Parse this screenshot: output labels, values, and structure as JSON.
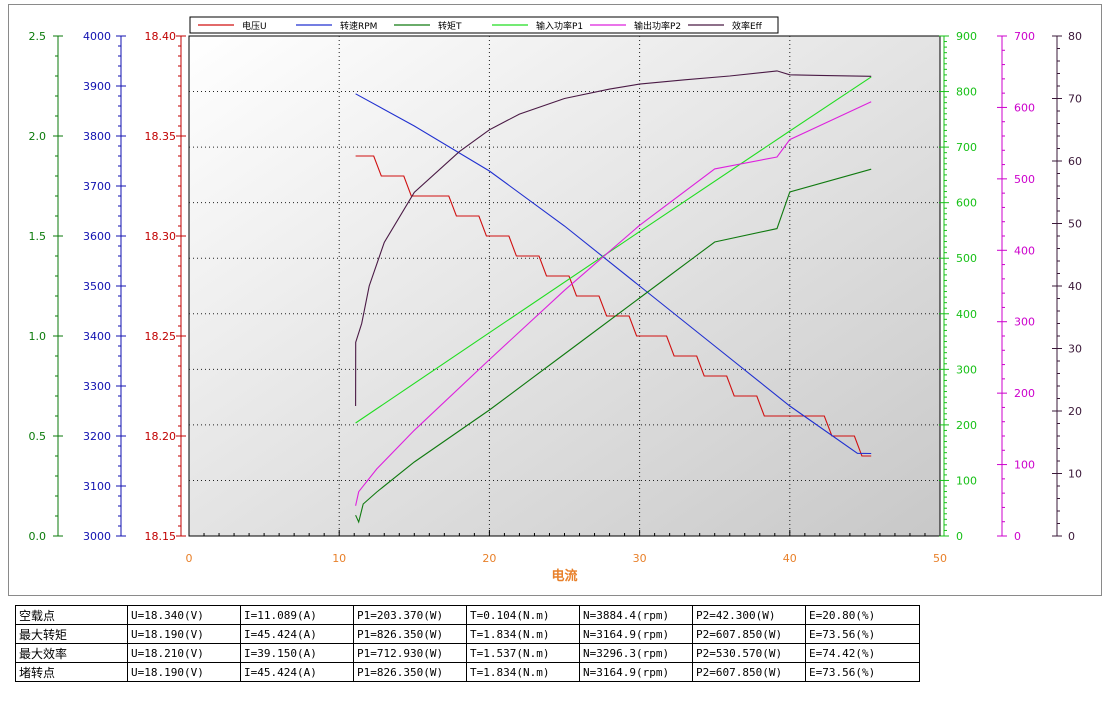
{
  "chart_data": {
    "type": "line",
    "xlabel": "电流",
    "xlim": [
      0,
      50
    ],
    "xticks": [
      0,
      10,
      20,
      30,
      40,
      50
    ],
    "grid": true,
    "legend_placement": "top",
    "axes": {
      "eff_left": {
        "color": "#0a7a0a",
        "range": [
          0,
          2.5
        ],
        "ticks": [
          "0.0",
          "0.5",
          "1.0",
          "1.5",
          "2.0",
          "2.5"
        ]
      },
      "rpm": {
        "color": "#1010b0",
        "range": [
          3000,
          4000
        ],
        "ticks": [
          "3000",
          "3100",
          "3200",
          "3300",
          "3400",
          "3500",
          "3600",
          "3700",
          "3800",
          "3900",
          "4000"
        ]
      },
      "voltage": {
        "color": "#c00000",
        "range": [
          18.15,
          18.4
        ],
        "ticks": [
          "18.15",
          "18.20",
          "18.25",
          "18.30",
          "18.35",
          "18.40"
        ]
      },
      "p1": {
        "color": "#16c016",
        "range": [
          0,
          900
        ],
        "ticks": [
          "0",
          "100",
          "200",
          "300",
          "400",
          "500",
          "600",
          "700",
          "800",
          "900"
        ]
      },
      "p2": {
        "color": "#cc00cc",
        "range": [
          0,
          700
        ],
        "ticks": [
          "0",
          "100",
          "200",
          "300",
          "400",
          "500",
          "600",
          "700"
        ]
      },
      "eff": {
        "color": "#3a1838",
        "range": [
          0,
          80
        ],
        "ticks": [
          "0",
          "10",
          "20",
          "30",
          "40",
          "50",
          "60",
          "70",
          "80"
        ]
      }
    },
    "series": [
      {
        "name": "电压U",
        "color": "#d01010",
        "axis": "voltage",
        "step": true,
        "points": [
          [
            11.09,
            18.34
          ],
          [
            12.3,
            18.34
          ],
          [
            12.8,
            18.33
          ],
          [
            14.3,
            18.33
          ],
          [
            14.8,
            18.32
          ],
          [
            17.3,
            18.32
          ],
          [
            17.8,
            18.31
          ],
          [
            19.3,
            18.31
          ],
          [
            19.8,
            18.3
          ],
          [
            21.3,
            18.3
          ],
          [
            21.8,
            18.29
          ],
          [
            23.3,
            18.29
          ],
          [
            23.8,
            18.28
          ],
          [
            25.3,
            18.28
          ],
          [
            25.8,
            18.27
          ],
          [
            27.3,
            18.27
          ],
          [
            27.8,
            18.26
          ],
          [
            29.3,
            18.26
          ],
          [
            29.8,
            18.25
          ],
          [
            31.8,
            18.25
          ],
          [
            32.3,
            18.24
          ],
          [
            33.8,
            18.24
          ],
          [
            34.3,
            18.23
          ],
          [
            35.8,
            18.23
          ],
          [
            36.3,
            18.22
          ],
          [
            37.8,
            18.22
          ],
          [
            38.3,
            18.21
          ],
          [
            42.3,
            18.21
          ],
          [
            42.8,
            18.2
          ],
          [
            44.3,
            18.2
          ],
          [
            44.8,
            18.19
          ],
          [
            45.42,
            18.19
          ]
        ]
      },
      {
        "name": "转速RPM",
        "color": "#2030d0",
        "axis": "rpm",
        "points": [
          [
            11.09,
            3884.4
          ],
          [
            15,
            3820
          ],
          [
            20,
            3730
          ],
          [
            25,
            3620
          ],
          [
            30,
            3500
          ],
          [
            35,
            3380
          ],
          [
            40,
            3260
          ],
          [
            44.5,
            3165.5
          ],
          [
            45.42,
            3164.9
          ]
        ]
      },
      {
        "name": "转矩T",
        "color": "#107a10",
        "axis": "eff_left",
        "points": [
          [
            11.09,
            0.104
          ],
          [
            11.3,
            0.07
          ],
          [
            11.6,
            0.16
          ],
          [
            12.5,
            0.22
          ],
          [
            15,
            0.37
          ],
          [
            20,
            0.63
          ],
          [
            25,
            0.91
          ],
          [
            30,
            1.19
          ],
          [
            35,
            1.47
          ],
          [
            39.15,
            1.537
          ],
          [
            40,
            1.72
          ],
          [
            45.42,
            1.834
          ]
        ]
      },
      {
        "name": "输入功率P1",
        "color": "#22dd22",
        "axis": "p1",
        "points": [
          [
            11.09,
            203.37
          ],
          [
            20,
            366
          ],
          [
            30,
            548
          ],
          [
            40,
            729
          ],
          [
            45.42,
            826.35
          ]
        ]
      },
      {
        "name": "输出功率P2",
        "color": "#dd22dd",
        "axis": "p2",
        "points": [
          [
            11.09,
            42.3
          ],
          [
            11.3,
            62
          ],
          [
            12.5,
            94
          ],
          [
            15,
            148
          ],
          [
            20,
            247
          ],
          [
            25,
            344
          ],
          [
            30,
            435
          ],
          [
            35,
            514
          ],
          [
            39.15,
            530.57
          ],
          [
            40,
            555
          ],
          [
            45.42,
            607.85
          ]
        ]
      },
      {
        "name": "效率Eff",
        "color": "#4a1a45",
        "axis": "eff",
        "points": [
          [
            11.09,
            20.8
          ],
          [
            11.1,
            31
          ],
          [
            11.5,
            34
          ],
          [
            12,
            40
          ],
          [
            13,
            47
          ],
          [
            15,
            55
          ],
          [
            18,
            61.5
          ],
          [
            20,
            65
          ],
          [
            22,
            67.5
          ],
          [
            25,
            70
          ],
          [
            28,
            71.5
          ],
          [
            30,
            72.3
          ],
          [
            33,
            73
          ],
          [
            36,
            73.6
          ],
          [
            39.15,
            74.42
          ],
          [
            40,
            73.8
          ],
          [
            42,
            73.7
          ],
          [
            45.42,
            73.56
          ]
        ]
      }
    ]
  },
  "summary_table": [
    [
      "空载点",
      "U=18.340(V)",
      "I=11.089(A)",
      "P1=203.370(W)",
      "T=0.104(N.m)",
      "N=3884.4(rpm)",
      "P2=42.300(W)",
      "E=20.80(%)"
    ],
    [
      "最大转矩",
      "U=18.190(V)",
      "I=45.424(A)",
      "P1=826.350(W)",
      "T=1.834(N.m)",
      "N=3164.9(rpm)",
      "P2=607.850(W)",
      "E=73.56(%)"
    ],
    [
      "最大效率",
      "U=18.210(V)",
      "I=39.150(A)",
      "P1=712.930(W)",
      "T=1.537(N.m)",
      "N=3296.3(rpm)",
      "P2=530.570(W)",
      "E=74.42(%)"
    ],
    [
      "堵转点",
      "U=18.190(V)",
      "I=45.424(A)",
      "P1=826.350(W)",
      "T=1.834(N.m)",
      "N=3164.9(rpm)",
      "P2=607.850(W)",
      "E=73.56(%)"
    ]
  ]
}
